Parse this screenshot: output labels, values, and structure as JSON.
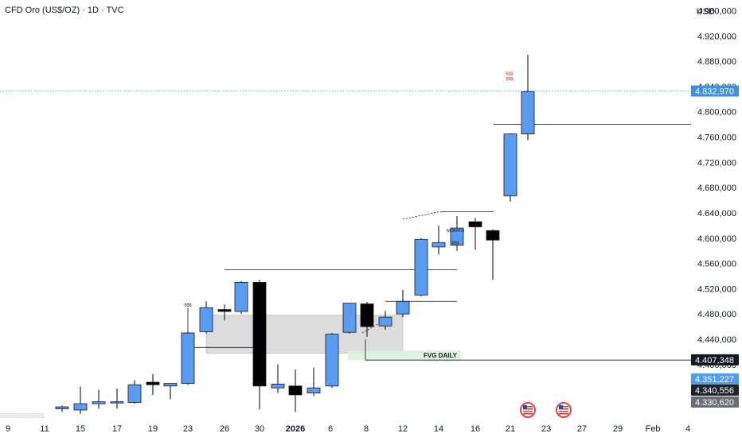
{
  "header": {
    "title": "CFD Oro (US$/OZ) · 1D · TVC",
    "currency": "USD"
  },
  "colors": {
    "up": "#5b9cf0",
    "down": "#000000",
    "wick": "#000000",
    "current_line": "#5b9cf0",
    "zone": "#d6d6d6",
    "fvg": "#dcefdc"
  },
  "chart_data": {
    "type": "candlestick",
    "y_axis": {
      "range": [
        4323000,
        4977000
      ],
      "ticks": [
        4360000,
        4400000,
        4440000,
        4480000,
        4520000,
        4560000,
        4600000,
        4640000,
        4680000,
        4720000,
        4760000,
        4800000,
        4840000,
        4880000,
        4920000,
        4960000,
        5000000
      ],
      "tick_labels": [
        "4.360,000",
        "4.400,000",
        "4.440,000",
        "4.480,000",
        "4.520,000",
        "4.560,000",
        "4.600,000",
        "4.640,000",
        "4.680,000",
        "4.720,000",
        "4.760,000",
        "4.800,000",
        "4.840,000",
        "4.880,000",
        "4.920,000",
        "4.960,000",
        "5.000,000"
      ]
    },
    "x_axis": {
      "labels": [
        "9",
        "11",
        "15",
        "17",
        "19",
        "23",
        "26",
        "30",
        "2026",
        "6",
        "8",
        "12",
        "14",
        "16",
        "21",
        "23",
        "27",
        "29",
        "Feb",
        "4"
      ]
    },
    "candles": [
      {
        "o": 4330,
        "h": 4335,
        "l": 4325,
        "c": 4333
      },
      {
        "o": 4328,
        "h": 4365,
        "l": 4322,
        "c": 4338
      },
      {
        "o": 4338,
        "h": 4360,
        "l": 4330,
        "c": 4341
      },
      {
        "o": 4340,
        "h": 4362,
        "l": 4330,
        "c": 4341
      },
      {
        "o": 4340,
        "h": 4375,
        "l": 4338,
        "c": 4368
      },
      {
        "o": 4372,
        "h": 4385,
        "l": 4352,
        "c": 4368
      },
      {
        "o": 4366,
        "h": 4370,
        "l": 4345,
        "c": 4370
      },
      {
        "o": 4370,
        "h": 4452,
        "l": 4368,
        "c": 4450
      },
      {
        "o": 4452,
        "h": 4500,
        "l": 4449,
        "c": 4490
      },
      {
        "o": 4487,
        "h": 4495,
        "l": 4470,
        "c": 4484
      },
      {
        "o": 4484,
        "h": 4532,
        "l": 4480,
        "c": 4530
      },
      {
        "o": 4530,
        "h": 4534,
        "l": 4329,
        "c": 4366
      },
      {
        "o": 4363,
        "h": 4400,
        "l": 4355,
        "c": 4369
      },
      {
        "o": 4366,
        "h": 4392,
        "l": 4325,
        "c": 4352
      },
      {
        "o": 4355,
        "h": 4395,
        "l": 4350,
        "c": 4363
      },
      {
        "o": 4366,
        "h": 4450,
        "l": 4363,
        "c": 4448
      },
      {
        "o": 4451,
        "h": 4497,
        "l": 4449,
        "c": 4497
      },
      {
        "o": 4496,
        "h": 4499,
        "l": 4444,
        "c": 4460
      },
      {
        "o": 4461,
        "h": 4485,
        "l": 4455,
        "c": 4475
      },
      {
        "o": 4480,
        "h": 4518,
        "l": 4475,
        "c": 4500
      },
      {
        "o": 4510,
        "h": 4600,
        "l": 4508,
        "c": 4598
      },
      {
        "o": 4586,
        "h": 4620,
        "l": 4574,
        "c": 4593
      },
      {
        "o": 4589,
        "h": 4635,
        "l": 4580,
        "c": 4616
      },
      {
        "o": 4626,
        "h": 4632,
        "l": 4582,
        "c": 4618
      },
      {
        "o": 4612,
        "h": 4614,
        "l": 4534,
        "c": 4597
      },
      {
        "o": 4667,
        "h": 4766,
        "l": 4658,
        "c": 4765
      },
      {
        "o": 4765,
        "h": 4890,
        "l": 4755,
        "c": 4832
      }
    ],
    "annotations": [
      {
        "text": "FVG DAILY",
        "type": "zone"
      },
      {
        "text": "$$$",
        "type": "marker"
      },
      {
        "text": "$$$",
        "type": "marker"
      },
      {
        "text": "$$$",
        "type": "marker"
      },
      {
        "text": "NOBATH",
        "type": "marker"
      },
      {
        "text": "$$$",
        "type": "marker"
      }
    ],
    "price_labels": [
      {
        "label": "4.832,970",
        "value": 4832970,
        "style": "current"
      },
      {
        "label": "4.407,348",
        "value": 4407348,
        "style": "level"
      },
      {
        "label": "4.351,227",
        "value": 4351227,
        "style": "blue"
      },
      {
        "label": "4.340,556",
        "value": 4340556,
        "style": "dark"
      },
      {
        "label": "4.330,620",
        "value": 4330620,
        "style": "gray"
      }
    ],
    "legend": "none",
    "grid": false
  }
}
